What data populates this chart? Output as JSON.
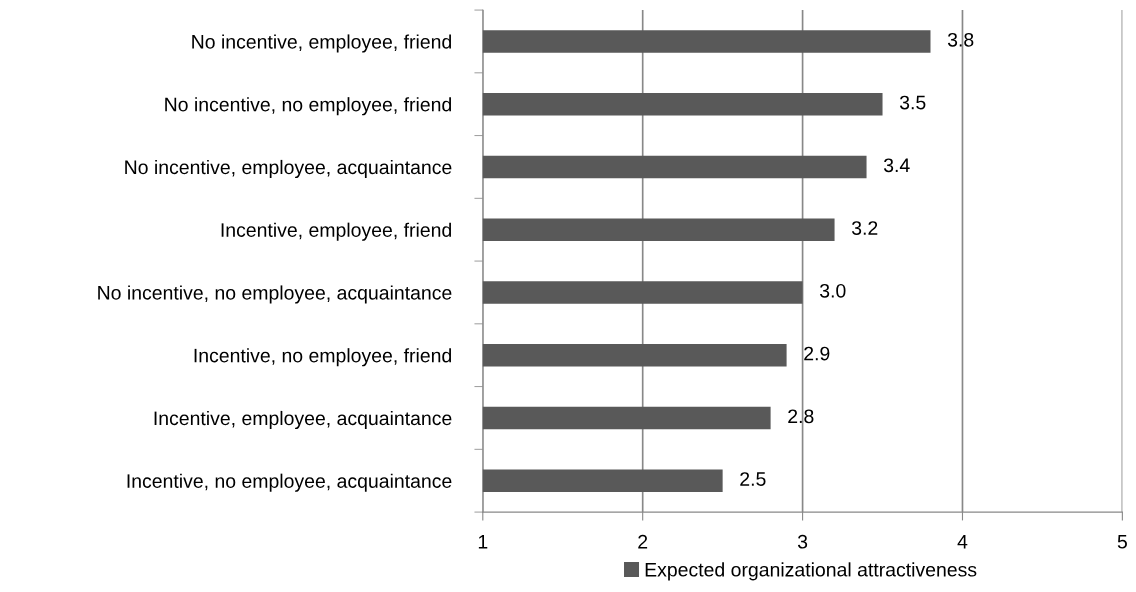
{
  "chart_data": {
    "type": "bar",
    "orientation": "horizontal",
    "categories": [
      "No incentive, employee, friend",
      "No incentive, no employee, friend",
      "No incentive, employee, acquaintance",
      "Incentive, employee, friend",
      "No incentive, no employee, acquaintance",
      "Incentive, no employee, friend",
      "Incentive, employee, acquaintance",
      "Incentive, no employee, acquaintance"
    ],
    "series": [
      {
        "name": "Expected organizational attractiveness",
        "color": "#595959",
        "values": [
          3.8,
          3.5,
          3.4,
          3.2,
          3.0,
          2.9,
          2.8,
          2.5
        ],
        "value_labels": [
          "3.8",
          "3.5",
          "3.4",
          "3.2",
          "3.0",
          "2.9",
          "2.8",
          "2.5"
        ]
      }
    ],
    "xlim": [
      1,
      5
    ],
    "xticks": [
      1,
      2,
      3,
      4,
      5
    ],
    "grid": "x",
    "legend": "bottom"
  }
}
